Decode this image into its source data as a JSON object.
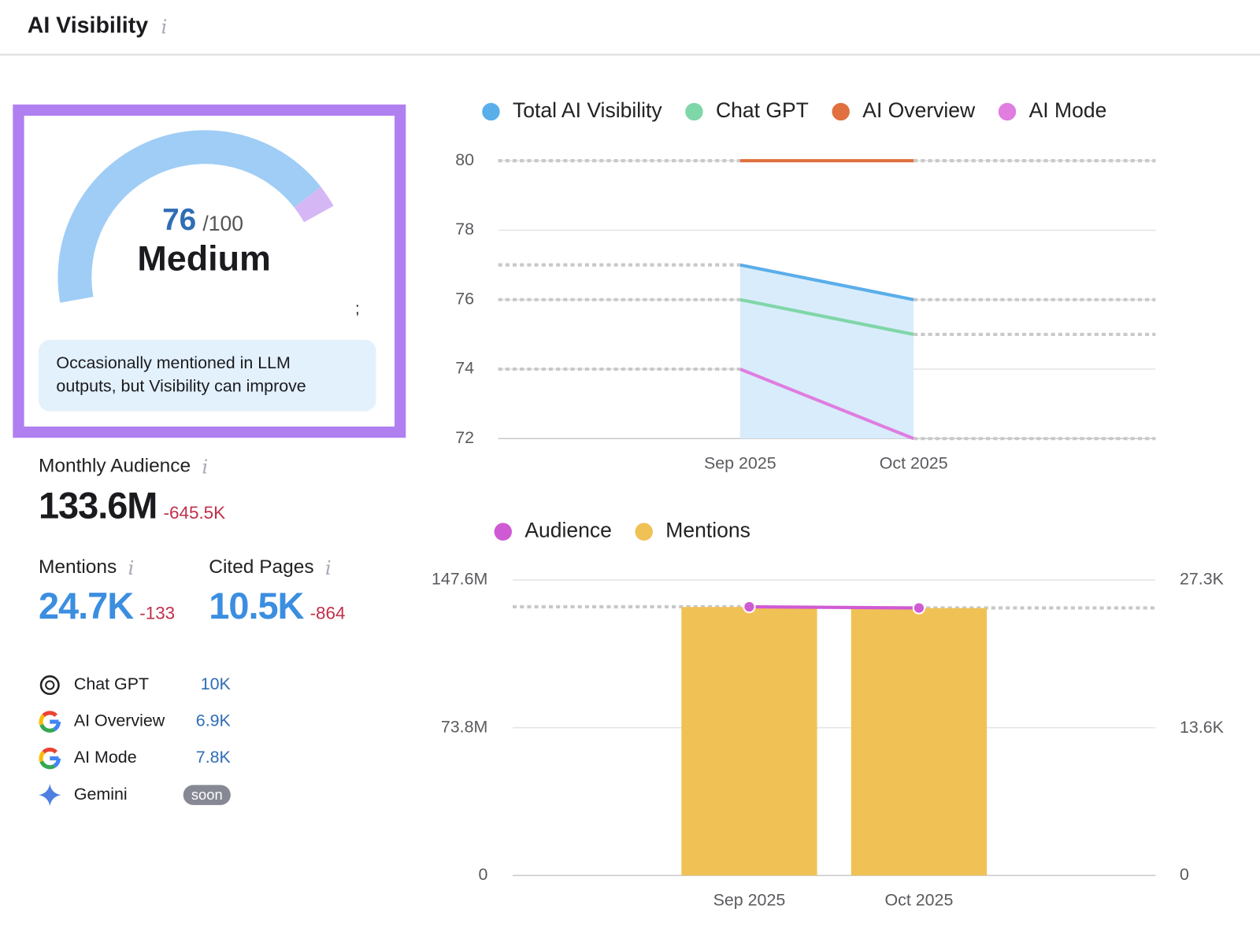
{
  "header": {
    "title": "AI Visibility",
    "info": "i"
  },
  "score": {
    "value": 76,
    "max": 100,
    "scale_label": "/100",
    "level": "Medium",
    "note": ";",
    "description": [
      "Occasionally mentioned in LLM",
      "outputs, but Visibility can improve"
    ],
    "gauge_color": "#9fcdf6",
    "marker_color": "#d6b7f5"
  },
  "metrics": [
    {
      "label": "Monthly Audience",
      "value": "133.6M",
      "change": "-645.5K"
    },
    {
      "label": "Mentions",
      "value": "24.7K",
      "change": "-133"
    },
    {
      "label": "Cited Pages",
      "value": "10.5K",
      "change": "-864"
    }
  ],
  "sources": [
    {
      "name": "Chat GPT",
      "value": "10K"
    },
    {
      "name": "AI Overview",
      "value": "6.9K"
    },
    {
      "name": "AI Mode",
      "value": "7.8K"
    },
    {
      "name": "Gemini",
      "badge": "soon"
    }
  ],
  "chart_data": [
    {
      "type": "line",
      "categories": [
        "Sep 2025",
        "Oct 2025"
      ],
      "series": [
        {
          "name": "Total AI Visibility",
          "color": "#5aaeea",
          "values": [
            77,
            76
          ]
        },
        {
          "name": "Chat GPT",
          "color": "#7fd6a8",
          "values": [
            76,
            75
          ]
        },
        {
          "name": "AI Overview",
          "color": "#e0703f",
          "values": [
            80,
            80
          ]
        },
        {
          "name": "AI Mode",
          "color": "#e07de0",
          "values": [
            74,
            72
          ]
        }
      ],
      "shade_color": "#d8ecfb",
      "ylim": [
        72,
        80
      ],
      "yticks": [
        72,
        74,
        76,
        78,
        80
      ],
      "grid": true
    },
    {
      "type": "combo",
      "categories": [
        "Sep 2025",
        "Oct 2025"
      ],
      "series": [
        {
          "name": "Audience",
          "type": "line",
          "color": "#cf5bd4",
          "values": [
            134200000,
            133600000
          ]
        },
        {
          "name": "Mentions",
          "type": "bar",
          "axis": "y2",
          "color": "#f0c155",
          "values": [
            24800,
            24700
          ]
        }
      ],
      "ylim": [
        0,
        147600000
      ],
      "yticks": [
        0,
        {
          "value": 73800000,
          "label": "73.8M"
        },
        {
          "value": 147600000,
          "label": "147.6M"
        }
      ],
      "y2lim": [
        0,
        27300
      ],
      "y2ticks": [
        0,
        {
          "value": 13600,
          "label": "13.6K"
        },
        {
          "value": 27300,
          "label": "27.3K"
        }
      ],
      "grid": true
    }
  ]
}
